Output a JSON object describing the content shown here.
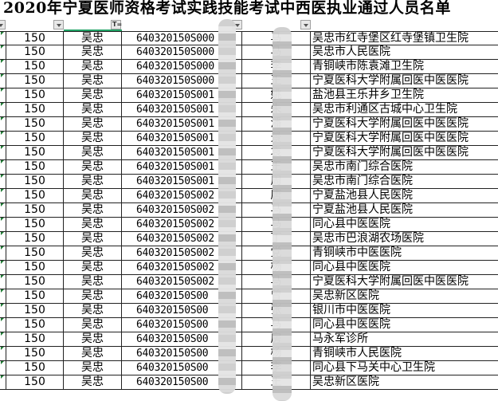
{
  "title": "2020年宁夏医师资格考试实践技能考试中西医执业通过人员名单",
  "filter_buttons": [
    "col-a",
    "col-b",
    "col-c",
    "col-d",
    "col-e"
  ],
  "rows": [
    {
      "score": "150",
      "city": "吴忠",
      "id": "640320150S000",
      "name": "马",
      "unit": "吴忠市红寺堡区红寺堡镇卫生院"
    },
    {
      "score": "150",
      "city": "吴忠",
      "id": "640320150S000",
      "name": "马",
      "unit": "吴忠市人民医院"
    },
    {
      "score": "150",
      "city": "吴忠",
      "id": "640320150S000",
      "name": "李",
      "unit": "青铜峡市陈袁滩卫生院"
    },
    {
      "score": "150",
      "city": "吴忠",
      "id": "640320150S000",
      "name": "王",
      "unit": "宁夏医科大学附属回医中医医院"
    },
    {
      "score": "150",
      "city": "吴忠",
      "id": "640320150S001",
      "name": "姚",
      "unit": "盐池县王乐井乡卫生院"
    },
    {
      "score": "150",
      "city": "吴忠",
      "id": "640320150S001",
      "name": "朱",
      "unit": "吴忠市利通区古城中心卫生院"
    },
    {
      "score": "150",
      "city": "吴忠",
      "id": "640320150S001",
      "name": "潘",
      "unit": "宁夏医科大学附属回医中医医院"
    },
    {
      "score": "150",
      "city": "吴忠",
      "id": "640320150S001",
      "name": "景",
      "unit": "宁夏医科大学附属回医中医医院"
    },
    {
      "score": "150",
      "city": "吴忠",
      "id": "640320150S001",
      "name": "袁",
      "unit": "宁夏医科大学附属回医中医医院"
    },
    {
      "score": "150",
      "city": "吴忠",
      "id": "640320150S001",
      "name": "王",
      "unit": "吴忠市南门综合医院"
    },
    {
      "score": "150",
      "city": "吴忠",
      "id": "640320150S001",
      "name": "周",
      "unit": "吴忠市南门综合医院"
    },
    {
      "score": "150",
      "city": "吴忠",
      "id": "640320150S002",
      "name": "唐",
      "unit": "宁夏盐池县人民医院"
    },
    {
      "score": "150",
      "city": "吴忠",
      "id": "640320150S002",
      "name": "马",
      "unit": "宁夏盐池县人民医院"
    },
    {
      "score": "150",
      "city": "吴忠",
      "id": "640320150S002",
      "name": "马",
      "unit": "同心县中医医院"
    },
    {
      "score": "150",
      "city": "吴忠",
      "id": "640320150S002",
      "name": "丁",
      "unit": "吴忠市巴浪湖农场医院"
    },
    {
      "score": "150",
      "city": "吴忠",
      "id": "640320150S002",
      "name": "党",
      "unit": "青铜峡市中医医院"
    },
    {
      "score": "150",
      "city": "吴忠",
      "id": "640320150S002",
      "name": "杨",
      "unit": "同心县中医医院"
    },
    {
      "score": "150",
      "city": "吴忠",
      "id": "640320150S002",
      "name": "马",
      "unit": "宁夏医科大学附属回医中医医院"
    },
    {
      "score": "150",
      "city": "吴忠",
      "id": "640320150S00",
      "name": "曾",
      "unit": "吴忠新区医院"
    },
    {
      "score": "150",
      "city": "吴忠",
      "id": "640320150S00",
      "name": "张",
      "unit": "银川市中医医院"
    },
    {
      "score": "150",
      "city": "吴忠",
      "id": "640320150S00",
      "name": "马",
      "unit": "同心县中医医院"
    },
    {
      "score": "150",
      "city": "吴忠",
      "id": "640320150S00",
      "name": "房",
      "unit": "马永军诊所"
    },
    {
      "score": "150",
      "city": "吴忠",
      "id": "640320150S00",
      "name": "杨",
      "unit": "青铜峡市人民医院"
    },
    {
      "score": "150",
      "city": "吴忠",
      "id": "640320150S00",
      "name": "李",
      "unit": "同心县下马关中心卫生院"
    },
    {
      "score": "150",
      "city": "吴忠",
      "id": "640320150S00",
      "name": "王",
      "unit": "吴忠新区医院"
    }
  ]
}
